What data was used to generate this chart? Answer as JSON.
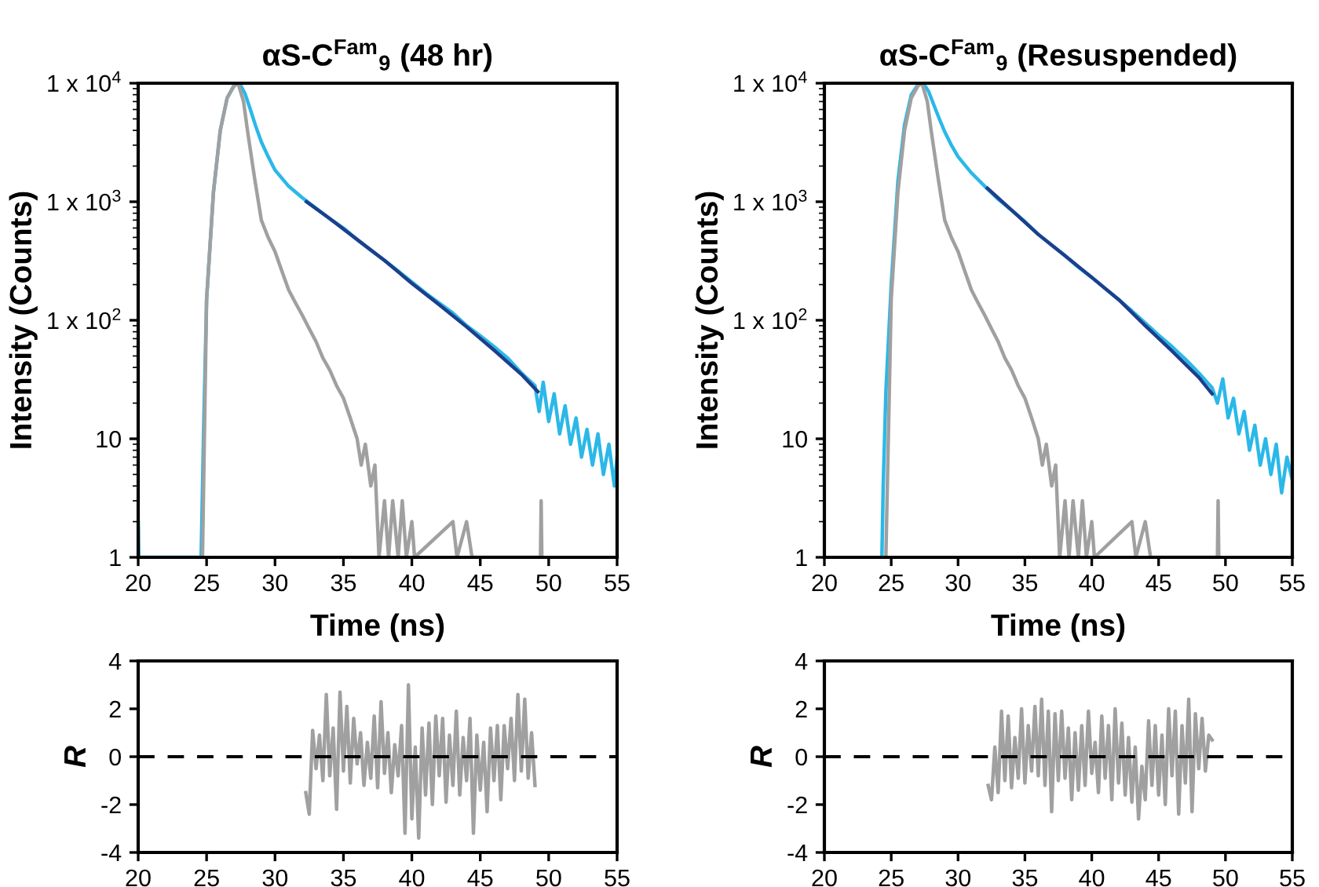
{
  "chart_data": [
    {
      "type": "line",
      "title": "αS-C$^{Fam}$$_{9}$ (48 hr)",
      "xlabel": "Time (ns)",
      "ylabel": "Intensity (Counts)",
      "log": "y",
      "xlim": [
        20,
        55
      ],
      "xticks": [
        20,
        25,
        30,
        35,
        40,
        45,
        50,
        55
      ],
      "ylim": [
        1,
        10000
      ],
      "yticks": [
        {
          "value": 1,
          "label": "1"
        },
        {
          "value": 10,
          "label": "10"
        },
        {
          "value": 100,
          "label": "1 x 10$^{2}$"
        },
        {
          "value": 1000,
          "label": "1 x 10$^{3}$"
        },
        {
          "value": 10000,
          "label": "1 x 10$^{4}$"
        }
      ],
      "series": [
        {
          "color": "#2bb8e8",
          "x": [
            20,
            20.05,
            20.1,
            24.6,
            24.8,
            25.0,
            25.5,
            26.0,
            26.5,
            27.0,
            27.4,
            27.8,
            28.2,
            28.6,
            29.0,
            29.5,
            30,
            31,
            32,
            33,
            34,
            35,
            36,
            37,
            38,
            39,
            40,
            41,
            42,
            43,
            44,
            45,
            46,
            47,
            48,
            49,
            49.3,
            49.6,
            50,
            50.4,
            50.8,
            51.2,
            51.6,
            52,
            52.4,
            52.8,
            53.2,
            53.6,
            54,
            54.4,
            54.8,
            55
          ],
          "values": [
            2,
            1,
            1,
            1,
            15,
            150,
            1200,
            4000,
            7500,
            9500,
            10000,
            8200,
            6000,
            4300,
            3200,
            2400,
            1850,
            1350,
            1080,
            880,
            720,
            600,
            480,
            390,
            320,
            260,
            210,
            170,
            140,
            115,
            90,
            74,
            60,
            48,
            36,
            28,
            17,
            30,
            14,
            24,
            11,
            19,
            9,
            15,
            7,
            12,
            6,
            11,
            5,
            9,
            4,
            7
          ]
        },
        {
          "color": "#a0a0a0",
          "x": [
            24.7,
            25,
            25.5,
            26,
            26.5,
            27,
            27.3,
            27.7,
            28,
            28.5,
            29,
            29.5,
            30,
            30.5,
            31,
            31.5,
            32,
            32.5,
            33,
            33.5,
            34,
            34.5,
            35,
            35.5,
            36,
            36.3,
            36.6,
            37,
            37.3,
            37.6,
            38,
            38.3,
            38.6,
            39,
            39.3,
            39.6,
            40,
            40.2,
            43,
            43.3,
            44,
            44.4,
            49.4,
            49.45,
            49.5
          ],
          "values": [
            1,
            150,
            1200,
            4000,
            7500,
            9500,
            10000,
            7000,
            3900,
            1600,
            700,
            500,
            380,
            260,
            180,
            140,
            110,
            85,
            66,
            48,
            38,
            28,
            22,
            15,
            10,
            6,
            9,
            4,
            6,
            1,
            3,
            1,
            3,
            1,
            3,
            1,
            2,
            1,
            2,
            1,
            2,
            1,
            1,
            3,
            1
          ]
        },
        {
          "color": "#1c3f8c",
          "x": [
            32.3,
            34,
            36,
            38,
            40,
            42,
            44,
            46,
            48,
            49.2
          ],
          "values": [
            1000,
            720,
            480,
            320,
            205,
            135,
            88,
            56,
            35,
            25
          ]
        }
      ]
    },
    {
      "type": "line",
      "title": "αS-C$^{Fam}$$_{9}$ (Resuspended)",
      "xlabel": "Time (ns)",
      "ylabel": "Intensity (Counts)",
      "log": "y",
      "xlim": [
        20,
        55
      ],
      "xticks": [
        20,
        25,
        30,
        35,
        40,
        45,
        50,
        55
      ],
      "ylim": [
        1,
        10000
      ],
      "yticks": [
        {
          "value": 1,
          "label": "1"
        },
        {
          "value": 10,
          "label": "10"
        },
        {
          "value": 100,
          "label": "1 x 10$^{2}$"
        },
        {
          "value": 1000,
          "label": "1 x 10$^{3}$"
        },
        {
          "value": 10000,
          "label": "1 x 10$^{4}$"
        }
      ],
      "series": [
        {
          "color": "#2bb8e8",
          "x": [
            24.3,
            24.4,
            24.6,
            25,
            25.5,
            26,
            26.5,
            27,
            27.4,
            27.8,
            28.2,
            28.6,
            29,
            29.5,
            30,
            31,
            32,
            33,
            34,
            35,
            36,
            37,
            38,
            39,
            40,
            41,
            42,
            43,
            44,
            45,
            46,
            47,
            48,
            49,
            49.4,
            49.8,
            50.2,
            50.6,
            51,
            51.4,
            51.8,
            52.2,
            52.6,
            53,
            53.4,
            53.8,
            54.2,
            54.6,
            55
          ],
          "values": [
            1,
            4,
            25,
            200,
            1500,
            4500,
            8000,
            9700,
            10000,
            8500,
            6500,
            5000,
            3900,
            3000,
            2400,
            1750,
            1350,
            1050,
            850,
            680,
            530,
            430,
            350,
            280,
            230,
            185,
            150,
            120,
            95,
            75,
            60,
            47,
            36,
            27,
            20,
            32,
            15,
            22,
            11,
            17,
            8,
            13,
            6,
            10,
            5,
            9,
            3.5,
            7,
            4.5
          ]
        },
        {
          "color": "#a0a0a0",
          "x": [
            24.6,
            25,
            25.5,
            26,
            26.5,
            27,
            27.3,
            27.7,
            28,
            28.5,
            29,
            29.5,
            30,
            30.5,
            31,
            31.5,
            32,
            32.5,
            33,
            33.5,
            34,
            34.5,
            35,
            35.5,
            36,
            36.3,
            36.6,
            37,
            37.3,
            37.6,
            38,
            38.3,
            38.6,
            39,
            39.3,
            39.6,
            40,
            40.2,
            43,
            43.3,
            44,
            44.4,
            49.4,
            49.45,
            49.5
          ],
          "values": [
            1,
            150,
            1200,
            4000,
            7500,
            9500,
            10000,
            7000,
            3900,
            1600,
            700,
            500,
            380,
            260,
            180,
            140,
            110,
            85,
            66,
            48,
            38,
            28,
            22,
            15,
            10,
            6,
            9,
            4,
            6,
            1,
            3,
            1,
            3,
            1,
            3,
            1,
            2,
            1,
            2,
            1,
            2,
            1,
            1,
            3,
            1
          ]
        },
        {
          "color": "#1c3f8c",
          "x": [
            32.2,
            34,
            36,
            38,
            40,
            42,
            44,
            46,
            48,
            49
          ],
          "values": [
            1300,
            850,
            530,
            350,
            230,
            150,
            90,
            55,
            33,
            24
          ]
        }
      ]
    },
    {
      "type": "line",
      "ylabel": "R",
      "xlim": [
        20,
        55
      ],
      "xticks": [
        20,
        25,
        30,
        35,
        40,
        45,
        50,
        55
      ],
      "ylim": [
        -4,
        4
      ],
      "yticks": [
        -4,
        -2,
        0,
        2,
        4
      ],
      "ref_lines": [
        {
          "axis": "y",
          "value": 0,
          "color": "#000000",
          "line_style": "dashed"
        }
      ],
      "series": [
        {
          "color": "#a0a0a0",
          "x": [
            32.25,
            32.5,
            32.75,
            33,
            33.25,
            33.5,
            33.75,
            34,
            34.25,
            34.5,
            34.75,
            35,
            35.25,
            35.5,
            35.75,
            36,
            36.25,
            36.5,
            36.75,
            37,
            37.25,
            37.5,
            37.75,
            38,
            38.25,
            38.5,
            38.75,
            39,
            39.25,
            39.5,
            39.75,
            40,
            40.25,
            40.5,
            40.75,
            41,
            41.25,
            41.5,
            41.75,
            42,
            42.25,
            42.5,
            42.75,
            43,
            43.25,
            43.5,
            43.75,
            44,
            44.25,
            44.5,
            44.75,
            45,
            45.25,
            45.5,
            45.75,
            46,
            46.25,
            46.5,
            46.75,
            47,
            47.25,
            47.5,
            47.75,
            48,
            48.25,
            48.5,
            48.75,
            49
          ],
          "values": [
            -1.5,
            -2.4,
            1.1,
            -0.5,
            0.9,
            -1.0,
            2.6,
            -0.8,
            1.2,
            -2.2,
            2.7,
            -0.6,
            2.1,
            -1.1,
            1.6,
            -0.3,
            1.0,
            -1.2,
            0.6,
            -0.9,
            1.7,
            -1.3,
            2.3,
            -0.7,
            1.0,
            -1.5,
            0.5,
            -0.8,
            1.3,
            -3.2,
            3.0,
            -2.6,
            0.4,
            -3.4,
            1.2,
            -1.6,
            1.4,
            -2.0,
            1.7,
            -0.8,
            1.6,
            -1.9,
            0.9,
            -1.2,
            1.9,
            -1.6,
            0.8,
            -1.0,
            1.6,
            -3.2,
            0.9,
            -1.4,
            0.6,
            -2.3,
            1.2,
            -1.0,
            1.3,
            -1.8,
            1.3,
            -0.5,
            1.6,
            -1.0,
            2.6,
            -0.6,
            2.4,
            -0.9,
            1.0,
            -1.2
          ]
        }
      ]
    },
    {
      "type": "line",
      "ylabel": "R",
      "xlim": [
        20,
        55
      ],
      "xticks": [
        20,
        25,
        30,
        35,
        40,
        45,
        50,
        55
      ],
      "ylim": [
        -4,
        4
      ],
      "yticks": [
        -4,
        -2,
        0,
        2,
        4
      ],
      "ref_lines": [
        {
          "axis": "y",
          "value": 0,
          "color": "#000000",
          "line_style": "dashed"
        }
      ],
      "series": [
        {
          "color": "#a0a0a0",
          "x": [
            32.25,
            32.5,
            32.75,
            33,
            33.25,
            33.5,
            33.75,
            34,
            34.25,
            34.5,
            34.75,
            35,
            35.25,
            35.5,
            35.75,
            36,
            36.25,
            36.5,
            36.75,
            37,
            37.25,
            37.5,
            37.75,
            38,
            38.25,
            38.5,
            38.75,
            39,
            39.25,
            39.5,
            39.75,
            40,
            40.25,
            40.5,
            40.75,
            41,
            41.25,
            41.5,
            41.75,
            42,
            42.25,
            42.5,
            42.75,
            43,
            43.25,
            43.5,
            43.75,
            44,
            44.25,
            44.5,
            44.75,
            45,
            45.25,
            45.5,
            45.75,
            46,
            46.25,
            46.5,
            46.75,
            47,
            47.25,
            47.5,
            47.75,
            48,
            48.25,
            48.5,
            48.75,
            49
          ],
          "values": [
            -1.2,
            -1.8,
            0.4,
            -1.5,
            1.9,
            -1.0,
            1.7,
            -1.3,
            0.8,
            -0.9,
            2.0,
            -1.1,
            1.3,
            -0.6,
            2.1,
            -0.8,
            2.4,
            -1.2,
            1.9,
            -2.3,
            1.8,
            -1.0,
            1.9,
            -0.9,
            1.2,
            -1.8,
            1.0,
            -1.4,
            1.3,
            -1.2,
            1.9,
            -0.7,
            0.6,
            -1.5,
            1.7,
            -0.9,
            1.3,
            -1.8,
            2.0,
            -1.1,
            1.4,
            -1.6,
            0.8,
            -1.9,
            0.4,
            -2.6,
            -0.4,
            -1.8,
            1.5,
            -1.2,
            1.3,
            -1.6,
            0.9,
            -2.0,
            2.0,
            -0.8,
            1.9,
            -2.4,
            1.3,
            -1.1,
            2.4,
            -2.3,
            1.8,
            -0.5,
            1.6,
            -0.6,
            0.9,
            0.7
          ]
        }
      ]
    }
  ]
}
